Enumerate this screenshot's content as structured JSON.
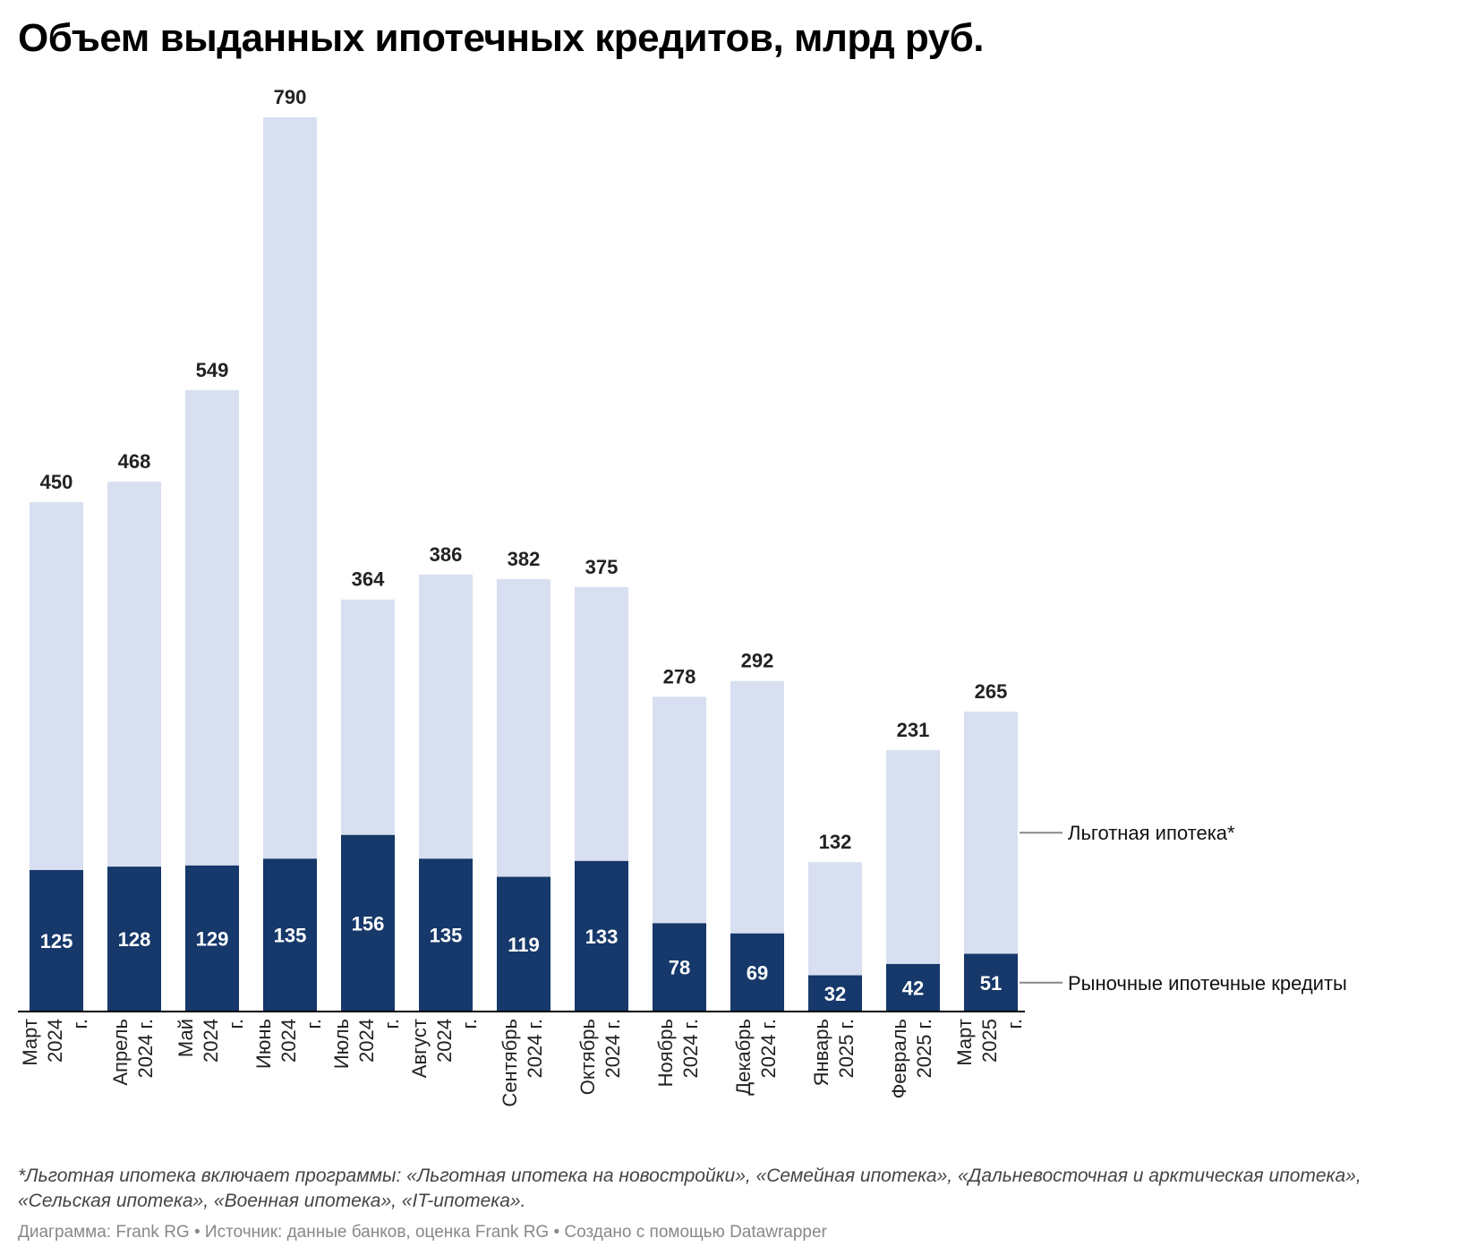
{
  "title": "Объем выданных ипотечных кредитов, млрд руб.",
  "footnote": "*Льготная ипотека включает программы: «Льготная ипотека на новостройки», «Семейная ипотека», «Дальневосточная и арктическая ипотека», «Сельская ипотека», «Военная ипотека», «IT-ипотека».",
  "credits": "Диаграмма: Frank RG • Источник: данные банков, оценка Frank RG • Создано с помощью Datawrapper",
  "colors": {
    "preferential": "#d8dff0",
    "market": "#16386a",
    "axis": "#000000",
    "connector": "#888888"
  },
  "chart_data": {
    "type": "bar",
    "stacked": true,
    "title": "Объем выданных ипотечных кредитов, млрд руб.",
    "categories": [
      [
        "Март",
        "2024",
        "г."
      ],
      [
        "Апрель",
        "2024 г."
      ],
      [
        "Май",
        "2024",
        "г."
      ],
      [
        "Июнь",
        "2024",
        "г."
      ],
      [
        "Июль",
        "2024",
        "г."
      ],
      [
        "Август",
        "2024",
        "г."
      ],
      [
        "Сентябрь",
        "2024 г."
      ],
      [
        "Октябрь",
        "2024 г."
      ],
      [
        "Ноябрь",
        "2024 г."
      ],
      [
        "Декабрь",
        "2024 г."
      ],
      [
        "Январь",
        "2025 г."
      ],
      [
        "Февраль",
        "2025 г."
      ],
      [
        "Март",
        "2025",
        "г."
      ]
    ],
    "totals": [
      450,
      468,
      549,
      790,
      364,
      386,
      382,
      375,
      278,
      292,
      132,
      231,
      265
    ],
    "series": [
      {
        "name": "Рыночные ипотечные кредиты",
        "values": [
          125,
          128,
          129,
          135,
          156,
          135,
          119,
          133,
          78,
          69,
          32,
          42,
          51
        ]
      },
      {
        "name": "Льготная ипотека*",
        "values": [
          325,
          340,
          420,
          655,
          208,
          251,
          263,
          242,
          200,
          223,
          100,
          189,
          214
        ]
      }
    ],
    "ylim": [
      0,
      790
    ],
    "grid": false,
    "legend": "right, labels attached to last bar"
  }
}
